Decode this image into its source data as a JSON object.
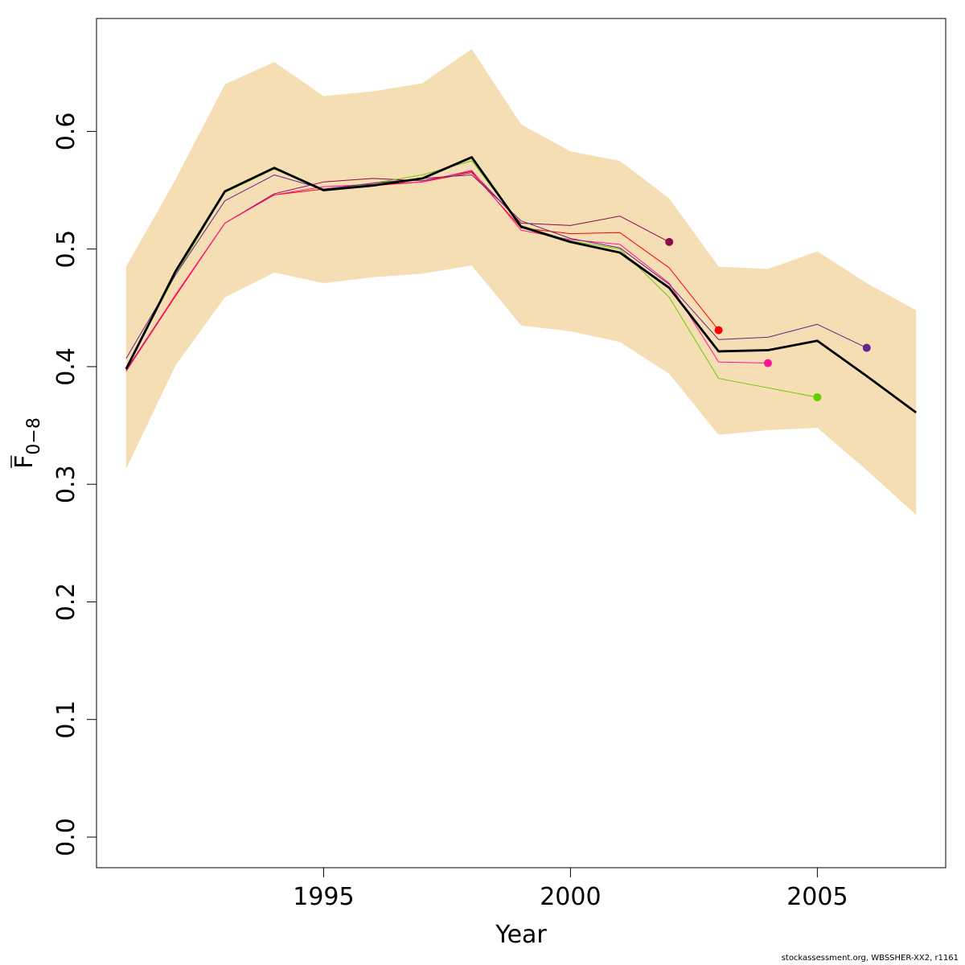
{
  "chart_data": {
    "type": "line",
    "xlabel": "Year",
    "ylabel": "F",
    "ylabel_subscript": "0−8",
    "xlim": [
      1990.4,
      2007.6
    ],
    "ylim": [
      -0.026,
      0.696
    ],
    "x_ticks": [
      1995,
      2000,
      2005
    ],
    "x_tick_labels": [
      "1995",
      "2000",
      "2005"
    ],
    "y_ticks": [
      0.0,
      0.1,
      0.2,
      0.3,
      0.4,
      0.5,
      0.6
    ],
    "y_tick_labels": [
      "0.0",
      "0.1",
      "0.2",
      "0.3",
      "0.4",
      "0.5",
      "0.6"
    ],
    "grid": false,
    "legend": "none",
    "band": {
      "color": "#f5deb3",
      "x": [
        1991,
        1992,
        1993,
        1994,
        1995,
        1996,
        1997,
        1998,
        1999,
        2000,
        2001,
        2002,
        2003,
        2004,
        2005,
        2006,
        2007
      ],
      "lower": [
        0.313,
        0.401,
        0.459,
        0.48,
        0.471,
        0.476,
        0.479,
        0.486,
        0.435,
        0.43,
        0.421,
        0.394,
        0.342,
        0.346,
        0.348,
        0.312,
        0.274
      ],
      "upper": [
        0.485,
        0.559,
        0.64,
        0.659,
        0.63,
        0.634,
        0.641,
        0.67,
        0.606,
        0.583,
        0.575,
        0.543,
        0.485,
        0.483,
        0.498,
        0.471,
        0.448
      ]
    },
    "series": [
      {
        "color": "#8b0a50",
        "width": 1,
        "x": [
          1991,
          1992,
          1993,
          1994,
          1995,
          1996,
          1997,
          1998,
          1999,
          2000,
          2001,
          2002
        ],
        "values": [
          0.397,
          0.461,
          0.522,
          0.547,
          0.557,
          0.56,
          0.558,
          0.566,
          0.522,
          0.52,
          0.528,
          0.506
        ]
      },
      {
        "color": "#ff0000",
        "width": 1,
        "x": [
          1991,
          1992,
          1993,
          1994,
          1995,
          1996,
          1997,
          1998,
          1999,
          2000,
          2001,
          2002,
          2003
        ],
        "values": [
          0.396,
          0.46,
          0.522,
          0.546,
          0.551,
          0.554,
          0.557,
          0.565,
          0.518,
          0.513,
          0.514,
          0.484,
          0.431
        ]
      },
      {
        "color": "#ff1493",
        "width": 1,
        "x": [
          1991,
          1992,
          1993,
          1994,
          1995,
          1996,
          1997,
          1998,
          1999,
          2000,
          2001,
          2002,
          2003,
          2004
        ],
        "values": [
          0.396,
          0.461,
          0.522,
          0.546,
          0.553,
          0.555,
          0.557,
          0.567,
          0.516,
          0.508,
          0.504,
          0.471,
          0.404,
          0.403
        ]
      },
      {
        "color": "#66cd00",
        "width": 1,
        "x": [
          1991,
          1992,
          1993,
          1994,
          1995,
          1996,
          1997,
          1998,
          1999,
          2000,
          2001,
          2002,
          2003,
          2005
        ],
        "values": [
          0.399,
          0.478,
          0.548,
          0.568,
          0.55,
          0.556,
          0.563,
          0.575,
          0.52,
          0.507,
          0.5,
          0.459,
          0.39,
          0.374
        ]
      },
      {
        "color": "#68228b",
        "width": 1,
        "x": [
          1991,
          1992,
          1993,
          1994,
          1995,
          1996,
          1997,
          1998,
          1999,
          2000,
          2001,
          2002,
          2003,
          2004,
          2005,
          2006
        ],
        "values": [
          0.407,
          0.478,
          0.541,
          0.563,
          0.551,
          0.556,
          0.56,
          0.563,
          0.524,
          0.509,
          0.501,
          0.47,
          0.423,
          0.425,
          0.436,
          0.416
        ]
      },
      {
        "color": "#000000",
        "width": 2.8,
        "x": [
          1991,
          1992,
          1993,
          1994,
          1995,
          1996,
          1997,
          1998,
          1999,
          2000,
          2001,
          2002,
          2003,
          2004,
          2005,
          2006,
          2007
        ],
        "values": [
          0.398,
          0.481,
          0.549,
          0.569,
          0.55,
          0.554,
          0.56,
          0.578,
          0.519,
          0.506,
          0.497,
          0.467,
          0.413,
          0.414,
          0.422,
          0.392,
          0.361
        ]
      }
    ],
    "endpoints": [
      {
        "x": 2002,
        "value": 0.506,
        "color": "#8b0a50"
      },
      {
        "x": 2003,
        "value": 0.431,
        "color": "#ff0000"
      },
      {
        "x": 2004,
        "value": 0.403,
        "color": "#ff1493"
      },
      {
        "x": 2005,
        "value": 0.374,
        "color": "#66cd00"
      },
      {
        "x": 2006,
        "value": 0.416,
        "color": "#68228b"
      }
    ]
  },
  "footer": "stockassessment.org, WBSSHER-XX2, r1161"
}
